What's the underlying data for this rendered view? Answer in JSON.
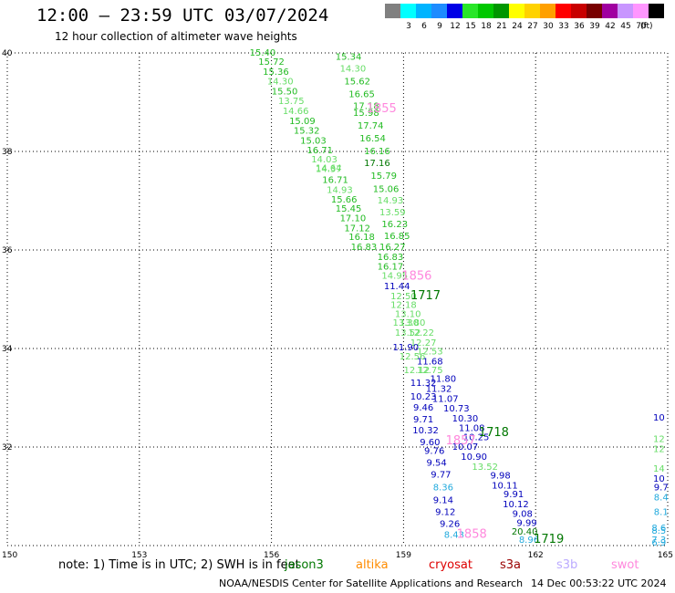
{
  "header": {
    "title": "12:00 – 23:59 UTC 03/07/2024",
    "subtitle": "12 hour collection of altimeter wave heights"
  },
  "colorbar": {
    "unit": "(ft)",
    "bins": [
      {
        "color": "#808080",
        "label": ""
      },
      {
        "color": "#00ffff",
        "label": "3"
      },
      {
        "color": "#00b4ff",
        "label": "6"
      },
      {
        "color": "#1e8cff",
        "label": "9"
      },
      {
        "color": "#0000e6",
        "label": "12"
      },
      {
        "color": "#28e628",
        "label": "15"
      },
      {
        "color": "#00c800",
        "label": "18"
      },
      {
        "color": "#009600",
        "label": "21"
      },
      {
        "color": "#ffff00",
        "label": "24"
      },
      {
        "color": "#ffd200",
        "label": "27"
      },
      {
        "color": "#ffa000",
        "label": "30"
      },
      {
        "color": "#ff0000",
        "label": "33"
      },
      {
        "color": "#c80000",
        "label": "36"
      },
      {
        "color": "#780000",
        "label": "39"
      },
      {
        "color": "#a000a0",
        "label": "42"
      },
      {
        "color": "#c896ff",
        "label": "45"
      },
      {
        "color": "#ff96ff",
        "label": "70"
      },
      {
        "color": "#000000",
        "label": ""
      }
    ]
  },
  "axes": {
    "x_ticks": [
      "150",
      "153",
      "156",
      "159",
      "162",
      "165"
    ],
    "y_ticks": [
      "30",
      "32",
      "34",
      "36",
      "38",
      "40"
    ],
    "x_values": [
      150,
      153,
      156,
      159,
      162,
      165
    ],
    "y_values": [
      30,
      32,
      34,
      36,
      38,
      40
    ],
    "xlim": [
      150,
      165
    ],
    "ylim": [
      30,
      40
    ],
    "grid": true
  },
  "colors": {
    "green": "#22bb22",
    "lightgreen": "#66dd66",
    "darkgreen": "#007700",
    "blue": "#0000bb",
    "cyan": "#22aadd",
    "pink": "#ff88dd",
    "altika": "#ff8c00",
    "cryosat": "#dd0000",
    "s3a": "#990000",
    "s3b": "#bbaaff",
    "swot": "#ff88dd"
  },
  "observations": [
    {
      "text": "15.40",
      "lon": 155.8,
      "lat": 39.94,
      "c": "green"
    },
    {
      "text": "15.72",
      "lon": 156.0,
      "lat": 39.76,
      "c": "green"
    },
    {
      "text": "15.36",
      "lon": 156.1,
      "lat": 39.56,
      "c": "green"
    },
    {
      "text": "14.30",
      "lon": 156.2,
      "lat": 39.36,
      "c": "lightgreen"
    },
    {
      "text": "15.50",
      "lon": 156.3,
      "lat": 39.16,
      "c": "green"
    },
    {
      "text": "13.75",
      "lon": 156.45,
      "lat": 38.96,
      "c": "lightgreen"
    },
    {
      "text": "14.66",
      "lon": 156.55,
      "lat": 38.76,
      "c": "lightgreen"
    },
    {
      "text": "15.09",
      "lon": 156.7,
      "lat": 38.56,
      "c": "green"
    },
    {
      "text": "15.32",
      "lon": 156.8,
      "lat": 38.36,
      "c": "green"
    },
    {
      "text": "15.03",
      "lon": 156.95,
      "lat": 38.16,
      "c": "green"
    },
    {
      "text": "16.71",
      "lon": 157.1,
      "lat": 37.96,
      "c": "green"
    },
    {
      "text": "14.03",
      "lon": 157.2,
      "lat": 37.78,
      "c": "lightgreen"
    },
    {
      "text": "14.64",
      "lon": 157.3,
      "lat": 37.6,
      "c": "lightgreen"
    },
    {
      "text": "14.37",
      "lon": 157.3,
      "lat": 37.58,
      "c": "lightgreen"
    },
    {
      "text": "16.71",
      "lon": 157.45,
      "lat": 37.36,
      "c": "green"
    },
    {
      "text": "14.93",
      "lon": 157.55,
      "lat": 37.16,
      "c": "lightgreen"
    },
    {
      "text": "15.66",
      "lon": 157.65,
      "lat": 36.96,
      "c": "green"
    },
    {
      "text": "15.45",
      "lon": 157.75,
      "lat": 36.78,
      "c": "green"
    },
    {
      "text": "17.10",
      "lon": 157.85,
      "lat": 36.58,
      "c": "green"
    },
    {
      "text": "17.12",
      "lon": 157.95,
      "lat": 36.38,
      "c": "green"
    },
    {
      "text": "16.18",
      "lon": 158.05,
      "lat": 36.2,
      "c": "green"
    },
    {
      "text": "16.83",
      "lon": 158.1,
      "lat": 36.0,
      "c": "green"
    },
    {
      "text": "15.34",
      "lon": 157.75,
      "lat": 39.86,
      "c": "green"
    },
    {
      "text": "14.30",
      "lon": 157.85,
      "lat": 39.62,
      "c": "lightgreen"
    },
    {
      "text": "15.62",
      "lon": 157.95,
      "lat": 39.36,
      "c": "green"
    },
    {
      "text": "16.65",
      "lon": 158.05,
      "lat": 39.1,
      "c": "green"
    },
    {
      "text": "17.18",
      "lon": 158.15,
      "lat": 38.86,
      "c": "green"
    },
    {
      "text": "15.98",
      "lon": 158.15,
      "lat": 38.72,
      "c": "green"
    },
    {
      "text": "17.74",
      "lon": 158.25,
      "lat": 38.46,
      "c": "green"
    },
    {
      "text": "16.54",
      "lon": 158.3,
      "lat": 38.2,
      "c": "green"
    },
    {
      "text": "16.16",
      "lon": 158.4,
      "lat": 37.94,
      "c": "green"
    },
    {
      "text": "17.16",
      "lon": 158.4,
      "lat": 37.7,
      "c": "darkgreen"
    },
    {
      "text": "15.79",
      "lon": 158.55,
      "lat": 37.44,
      "c": "green"
    },
    {
      "text": "15.06",
      "lon": 158.6,
      "lat": 37.18,
      "c": "green"
    },
    {
      "text": "14.93",
      "lon": 158.7,
      "lat": 36.94,
      "c": "lightgreen"
    },
    {
      "text": "13.59",
      "lon": 158.75,
      "lat": 36.7,
      "c": "lightgreen"
    },
    {
      "text": "16.23",
      "lon": 158.8,
      "lat": 36.46,
      "c": "green"
    },
    {
      "text": "16.85",
      "lon": 158.85,
      "lat": 36.22,
      "c": "green"
    },
    {
      "text": "16.27",
      "lon": 158.75,
      "lat": 36.0,
      "c": "green"
    },
    {
      "text": "16.83",
      "lon": 158.7,
      "lat": 35.8,
      "c": "green"
    },
    {
      "text": "16.17",
      "lon": 158.7,
      "lat": 35.6,
      "c": "green"
    },
    {
      "text": "14.95",
      "lon": 158.8,
      "lat": 35.42,
      "c": "lightgreen"
    },
    {
      "text": "11.44",
      "lon": 158.85,
      "lat": 35.2,
      "c": "blue"
    },
    {
      "text": "12.50",
      "lon": 159.0,
      "lat": 35.0,
      "c": "lightgreen"
    },
    {
      "text": "12.18",
      "lon": 159.0,
      "lat": 34.82,
      "c": "lightgreen"
    },
    {
      "text": "13.10",
      "lon": 159.1,
      "lat": 34.64,
      "c": "lightgreen"
    },
    {
      "text": "13.30",
      "lon": 159.05,
      "lat": 34.46,
      "c": "lightgreen"
    },
    {
      "text": "13.80",
      "lon": 159.2,
      "lat": 34.46,
      "c": "lightgreen"
    },
    {
      "text": "13.52",
      "lon": 159.1,
      "lat": 34.26,
      "c": "lightgreen"
    },
    {
      "text": "12.22",
      "lon": 159.4,
      "lat": 34.26,
      "c": "lightgreen"
    },
    {
      "text": "12.27",
      "lon": 159.45,
      "lat": 34.06,
      "c": "lightgreen"
    },
    {
      "text": "11.90",
      "lon": 159.05,
      "lat": 33.96,
      "c": "blue"
    },
    {
      "text": "12.53",
      "lon": 159.6,
      "lat": 33.88,
      "c": "lightgreen"
    },
    {
      "text": "12.56",
      "lon": 159.2,
      "lat": 33.78,
      "c": "lightgreen"
    },
    {
      "text": "11.68",
      "lon": 159.6,
      "lat": 33.68,
      "c": "blue"
    },
    {
      "text": "12.12",
      "lon": 159.3,
      "lat": 33.5,
      "c": "lightgreen"
    },
    {
      "text": "12.75",
      "lon": 159.6,
      "lat": 33.5,
      "c": "lightgreen"
    },
    {
      "text": "11.80",
      "lon": 159.9,
      "lat": 33.32,
      "c": "blue"
    },
    {
      "text": "11.32",
      "lon": 159.45,
      "lat": 33.24,
      "c": "blue"
    },
    {
      "text": "11.32",
      "lon": 159.8,
      "lat": 33.12,
      "c": "blue"
    },
    {
      "text": "10.23",
      "lon": 159.45,
      "lat": 32.96,
      "c": "blue"
    },
    {
      "text": "11.07",
      "lon": 159.95,
      "lat": 32.92,
      "c": "blue"
    },
    {
      "text": "9.46",
      "lon": 159.45,
      "lat": 32.74,
      "c": "blue"
    },
    {
      "text": "10.73",
      "lon": 160.2,
      "lat": 32.72,
      "c": "blue"
    },
    {
      "text": "10.30",
      "lon": 160.4,
      "lat": 32.52,
      "c": "blue"
    },
    {
      "text": "9.71",
      "lon": 159.45,
      "lat": 32.5,
      "c": "blue"
    },
    {
      "text": "11.08",
      "lon": 160.55,
      "lat": 32.32,
      "c": "blue"
    },
    {
      "text": "10.32",
      "lon": 159.5,
      "lat": 32.28,
      "c": "blue"
    },
    {
      "text": "10.25",
      "lon": 160.65,
      "lat": 32.14,
      "c": "blue"
    },
    {
      "text": "9.60",
      "lon": 159.6,
      "lat": 32.04,
      "c": "blue"
    },
    {
      "text": "10.07",
      "lon": 160.4,
      "lat": 31.94,
      "c": "blue"
    },
    {
      "text": "9.76",
      "lon": 159.7,
      "lat": 31.86,
      "c": "blue"
    },
    {
      "text": "10.90",
      "lon": 160.6,
      "lat": 31.74,
      "c": "blue"
    },
    {
      "text": "9.54",
      "lon": 159.75,
      "lat": 31.62,
      "c": "blue"
    },
    {
      "text": "13.52",
      "lon": 160.85,
      "lat": 31.54,
      "c": "lightgreen"
    },
    {
      "text": "9.77",
      "lon": 159.85,
      "lat": 31.38,
      "c": "blue"
    },
    {
      "text": "9.98",
      "lon": 161.2,
      "lat": 31.36,
      "c": "blue"
    },
    {
      "text": "10.11",
      "lon": 161.3,
      "lat": 31.16,
      "c": "blue"
    },
    {
      "text": "8.36",
      "lon": 159.9,
      "lat": 31.12,
      "c": "cyan"
    },
    {
      "text": "9.91",
      "lon": 161.5,
      "lat": 30.98,
      "c": "blue"
    },
    {
      "text": "9.14",
      "lon": 159.9,
      "lat": 30.86,
      "c": "blue"
    },
    {
      "text": "10.12",
      "lon": 161.55,
      "lat": 30.78,
      "c": "blue"
    },
    {
      "text": "9.12",
      "lon": 159.95,
      "lat": 30.62,
      "c": "blue"
    },
    {
      "text": "9.08",
      "lon": 161.7,
      "lat": 30.58,
      "c": "blue"
    },
    {
      "text": "9.26",
      "lon": 160.05,
      "lat": 30.38,
      "c": "blue"
    },
    {
      "text": "9.99",
      "lon": 161.8,
      "lat": 30.4,
      "c": "blue"
    },
    {
      "text": "8.43",
      "lon": 160.15,
      "lat": 30.16,
      "c": "cyan"
    },
    {
      "text": "20.40",
      "lon": 161.75,
      "lat": 30.22,
      "c": "darkgreen"
    },
    {
      "text": "8.96",
      "lon": 161.85,
      "lat": 30.06,
      "c": "cyan"
    },
    {
      "text": "10",
      "lon": 164.8,
      "lat": 32.54,
      "c": "blue"
    },
    {
      "text": "12",
      "lon": 164.8,
      "lat": 32.1,
      "c": "lightgreen"
    },
    {
      "text": "12",
      "lon": 164.8,
      "lat": 31.9,
      "c": "lightgreen"
    },
    {
      "text": "14",
      "lon": 164.8,
      "lat": 31.5,
      "c": "lightgreen"
    },
    {
      "text": "10",
      "lon": 164.8,
      "lat": 31.3,
      "c": "blue"
    },
    {
      "text": "9.7",
      "lon": 164.85,
      "lat": 31.12,
      "c": "blue"
    },
    {
      "text": "8.4",
      "lon": 164.85,
      "lat": 30.92,
      "c": "cyan"
    },
    {
      "text": "8.1",
      "lon": 164.85,
      "lat": 30.62,
      "c": "cyan"
    },
    {
      "text": "8.6",
      "lon": 164.8,
      "lat": 30.3,
      "c": "cyan"
    },
    {
      "text": "8.5",
      "lon": 164.8,
      "lat": 30.24,
      "c": "cyan"
    },
    {
      "text": "7.3",
      "lon": 164.8,
      "lat": 30.06,
      "c": "cyan"
    },
    {
      "text": "6.9",
      "lon": 164.8,
      "lat": 30.0,
      "c": "cyan"
    }
  ],
  "passes": [
    {
      "text": "1855",
      "lon": 158.5,
      "lat": 38.8,
      "c": "pink"
    },
    {
      "text": "1856",
      "lon": 159.3,
      "lat": 35.4,
      "c": "pink"
    },
    {
      "text": "1717",
      "lon": 159.5,
      "lat": 35.0,
      "c": "darkgreen"
    },
    {
      "text": "1718",
      "lon": 161.05,
      "lat": 32.22,
      "c": "darkgreen"
    },
    {
      "text": "1857",
      "lon": 160.3,
      "lat": 32.06,
      "c": "pink"
    },
    {
      "text": "1858",
      "lon": 160.55,
      "lat": 30.16,
      "c": "pink"
    },
    {
      "text": "1719",
      "lon": 162.3,
      "lat": 30.06,
      "c": "darkgreen"
    }
  ],
  "footer": {
    "note": "note:  1) Time is in UTC;  2) SWH is in feet",
    "satellites": [
      {
        "name": "jason3",
        "c": "darkgreen"
      },
      {
        "name": "altika",
        "c": "altika"
      },
      {
        "name": "cryosat",
        "c": "cryosat"
      },
      {
        "name": "s3a",
        "c": "s3a"
      },
      {
        "name": "s3b",
        "c": "s3b"
      },
      {
        "name": "swot",
        "c": "swot"
      }
    ],
    "credit": "NOAA/NESDIS Center for Satellite Applications and Research",
    "timestamp": "14 Dec 00:53:22 UTC 2024"
  }
}
